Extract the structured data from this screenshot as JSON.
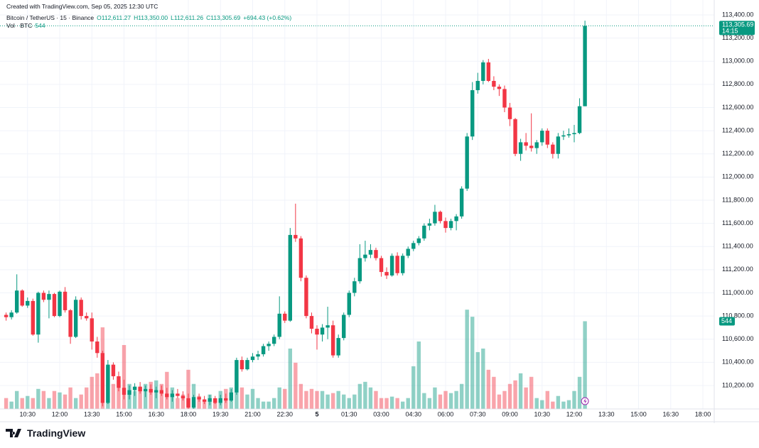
{
  "chart_data": {
    "type": "candlestick",
    "created": "Created with TradingView.com, Sep 05, 2025 12:30 UTC",
    "title": "Bitcoin / TetherUS · 15 · Binance",
    "ohlc_header": {
      "open": "O112,611.27",
      "high": "H113,350.00",
      "low": "L112,611.26",
      "close": "C113,305.69",
      "change": "+694.43 (+0.62%)"
    },
    "volume_title": "Vol · BTC",
    "price_tag": "113,305.69",
    "countdown": "14:15",
    "logo": "TradingView",
    "up_color": "#089981",
    "down_color": "#f23645",
    "grid": true,
    "xlim": [
      -1.14,
      132.12
    ],
    "ylim": [
      110000,
      113455
    ],
    "vlim": [
      0,
      2490
    ],
    "xticks": [
      {
        "value": 4,
        "label": "10:30"
      },
      {
        "value": 10,
        "label": "12:00"
      },
      {
        "value": 16,
        "label": "13:30"
      },
      {
        "value": 22,
        "label": "15:00"
      },
      {
        "value": 28,
        "label": "16:30"
      },
      {
        "value": 34,
        "label": "18:00"
      },
      {
        "value": 40,
        "label": "19:30"
      },
      {
        "value": 46,
        "label": "21:00"
      },
      {
        "value": 52,
        "label": "22:30"
      },
      {
        "value": 58,
        "label": "5"
      },
      {
        "value": 64,
        "label": "01:30"
      },
      {
        "value": 70,
        "label": "03:00"
      },
      {
        "value": 76,
        "label": "04:30"
      },
      {
        "value": 82,
        "label": "06:00"
      },
      {
        "value": 88,
        "label": "07:30"
      },
      {
        "value": 94,
        "label": "09:00"
      },
      {
        "value": 100,
        "label": "10:30"
      },
      {
        "value": 106,
        "label": "12:00"
      },
      {
        "value": 112,
        "label": "13:30"
      },
      {
        "value": 118,
        "label": "15:00"
      },
      {
        "value": 124,
        "label": "16:30"
      },
      {
        "value": 130,
        "label": "18:00"
      }
    ],
    "yticks": [
      {
        "value": 110200,
        "label": "110,200.00"
      },
      {
        "value": 110400,
        "label": "110,400.00"
      },
      {
        "value": 110600,
        "label": "110,600.00"
      },
      {
        "value": 110800,
        "label": "110,800.00"
      },
      {
        "value": 111000,
        "label": "111,000.00"
      },
      {
        "value": 111200,
        "label": "111,200.00"
      },
      {
        "value": 111400,
        "label": "111,400.00"
      },
      {
        "value": 111600,
        "label": "111,600.00"
      },
      {
        "value": 111800,
        "label": "111,800.00"
      },
      {
        "value": 112000,
        "label": "112,000.00"
      },
      {
        "value": 112200,
        "label": "112,200.00"
      },
      {
        "value": 112400,
        "label": "112,400.00"
      },
      {
        "value": 112600,
        "label": "112,600.00"
      },
      {
        "value": 112800,
        "label": "112,800.00"
      },
      {
        "value": 113000,
        "label": "113,000.00"
      },
      {
        "value": 113200,
        "label": "113,200.00"
      },
      {
        "value": 113400,
        "label": "113,400.00"
      }
    ],
    "open": [
      110810,
      110790,
      110830,
      111020,
      110890,
      110930,
      110640,
      111000,
      110940,
      110990,
      110800,
      111010,
      110850,
      110620,
      110940,
      110800,
      110780,
      110580,
      110480,
      110050,
      110380,
      110280,
      110180,
      110120,
      110160,
      110190,
      110150,
      110170,
      110140,
      110160,
      110130,
      110100,
      110130,
      110110,
      110090,
      110010,
      110100,
      110080,
      110060,
      110090,
      110050,
      110090,
      110070,
      110140,
      110420,
      110340,
      110420,
      110450,
      110470,
      110540,
      110560,
      110620,
      110820,
      110760,
      111500,
      111470,
      111130,
      110800,
      110690,
      110640,
      110700,
      110720,
      110460,
      110610,
      110810,
      111000,
      111100,
      111300,
      111330,
      111370,
      111300,
      111180,
      111150,
      111320,
      111170,
      111320,
      111380,
      111430,
      111470,
      111580,
      111600,
      111700,
      111620,
      111560,
      111620,
      111660,
      111900,
      112350,
      112750,
      112830,
      112990,
      112830,
      112780,
      112760,
      112600,
      112500,
      112200,
      112300,
      112270,
      112250,
      112300,
      112400,
      112280,
      112200,
      112350,
      112360,
      112370,
      112380,
      112611.27
    ],
    "high": [
      110830,
      110850,
      111160,
      111030,
      110960,
      110950,
      111010,
      111020,
      111020,
      111000,
      111020,
      111050,
      110860,
      110970,
      110960,
      110830,
      110830,
      110620,
      110500,
      110420,
      110400,
      110320,
      110250,
      110200,
      110220,
      110230,
      110200,
      110210,
      110190,
      110200,
      110180,
      110160,
      110170,
      110150,
      110130,
      110120,
      110130,
      110110,
      110120,
      110110,
      110120,
      110130,
      110170,
      110440,
      110450,
      110440,
      110480,
      110500,
      110560,
      110580,
      110640,
      110970,
      110840,
      111560,
      111770,
      111490,
      111150,
      110830,
      110720,
      110730,
      110880,
      110760,
      110640,
      110830,
      111020,
      111130,
      111420,
      111450,
      111420,
      111390,
      111320,
      111220,
      111340,
      111350,
      111340,
      111400,
      111450,
      111490,
      111600,
      111640,
      111760,
      111710,
      111650,
      111640,
      111680,
      111920,
      112380,
      112820,
      112900,
      113010,
      113020,
      112870,
      112800,
      112790,
      112640,
      112510,
      112330,
      112380,
      112550,
      112320,
      112420,
      112420,
      112300,
      112380,
      112400,
      112420,
      112450,
      112680,
      113350
    ],
    "low": [
      110760,
      110770,
      110820,
      110880,
      110870,
      110630,
      110570,
      110920,
      110780,
      110790,
      110790,
      110830,
      110560,
      110610,
      110770,
      110760,
      110510,
      110440,
      110020,
      110040,
      110250,
      110150,
      110080,
      110080,
      110110,
      110130,
      110100,
      110120,
      110090,
      110110,
      110080,
      110060,
      110090,
      110070,
      110000,
      110000,
      110060,
      110040,
      110030,
      110040,
      110030,
      110050,
      110060,
      110120,
      110320,
      110330,
      110400,
      110420,
      110450,
      110500,
      110540,
      110600,
      110740,
      110750,
      111440,
      111100,
      110780,
      110650,
      110510,
      110580,
      110600,
      110440,
      110440,
      110590,
      110790,
      110970,
      111080,
      111270,
      111300,
      111280,
      111140,
      111120,
      111140,
      111150,
      111150,
      111300,
      111360,
      111410,
      111450,
      111540,
      111580,
      111600,
      111520,
      111540,
      111540,
      111640,
      111880,
      112320,
      112720,
      112800,
      112820,
      112750,
      112700,
      112560,
      112440,
      112180,
      112140,
      112230,
      112220,
      112200,
      112270,
      112250,
      112160,
      112160,
      112320,
      112340,
      112300,
      112370,
      112611.26
    ],
    "close": [
      110790,
      110830,
      111020,
      110890,
      110930,
      110640,
      111000,
      110940,
      110990,
      110800,
      111010,
      110850,
      110620,
      110940,
      110800,
      110780,
      110580,
      110480,
      110050,
      110380,
      110280,
      110180,
      110120,
      110160,
      110190,
      110150,
      110170,
      110140,
      110160,
      110130,
      110100,
      110130,
      110110,
      110090,
      110010,
      110100,
      110080,
      110060,
      110090,
      110050,
      110090,
      110070,
      110140,
      110420,
      110340,
      110420,
      110450,
      110470,
      110540,
      110560,
      110620,
      110820,
      110760,
      111500,
      111470,
      111130,
      110800,
      110690,
      110640,
      110700,
      110720,
      110460,
      110610,
      110810,
      111000,
      111100,
      111300,
      111330,
      111370,
      111300,
      111180,
      111150,
      111320,
      111170,
      111320,
      111380,
      111430,
      111470,
      111580,
      111600,
      111700,
      111620,
      111560,
      111620,
      111660,
      111900,
      112350,
      112750,
      112830,
      112990,
      112830,
      112780,
      112760,
      112600,
      112500,
      112200,
      112300,
      112270,
      112250,
      112300,
      112400,
      112280,
      112200,
      112350,
      112360,
      112370,
      112380,
      112611.27,
      113305.69
    ],
    "volume": [
      66,
      44,
      110,
      66,
      79,
      66,
      123,
      110,
      66,
      110,
      101,
      88,
      132,
      66,
      88,
      132,
      198,
      220,
      506,
      264,
      154,
      176,
      396,
      154,
      110,
      132,
      154,
      167,
      176,
      154,
      229,
      132,
      66,
      88,
      242,
      154,
      79,
      53,
      88,
      44,
      110,
      123,
      132,
      242,
      132,
      88,
      123,
      66,
      44,
      44,
      66,
      132,
      123,
      374,
      286,
      154,
      110,
      123,
      110,
      110,
      88,
      97,
      110,
      88,
      66,
      88,
      154,
      167,
      132,
      110,
      66,
      66,
      75,
      66,
      44,
      66,
      264,
      418,
      97,
      66,
      132,
      88,
      110,
      97,
      110,
      154,
      616,
      572,
      352,
      374,
      242,
      198,
      88,
      110,
      154,
      176,
      220,
      132,
      198,
      66,
      53,
      110,
      44,
      79,
      44,
      53,
      110,
      198,
      544
    ]
  }
}
